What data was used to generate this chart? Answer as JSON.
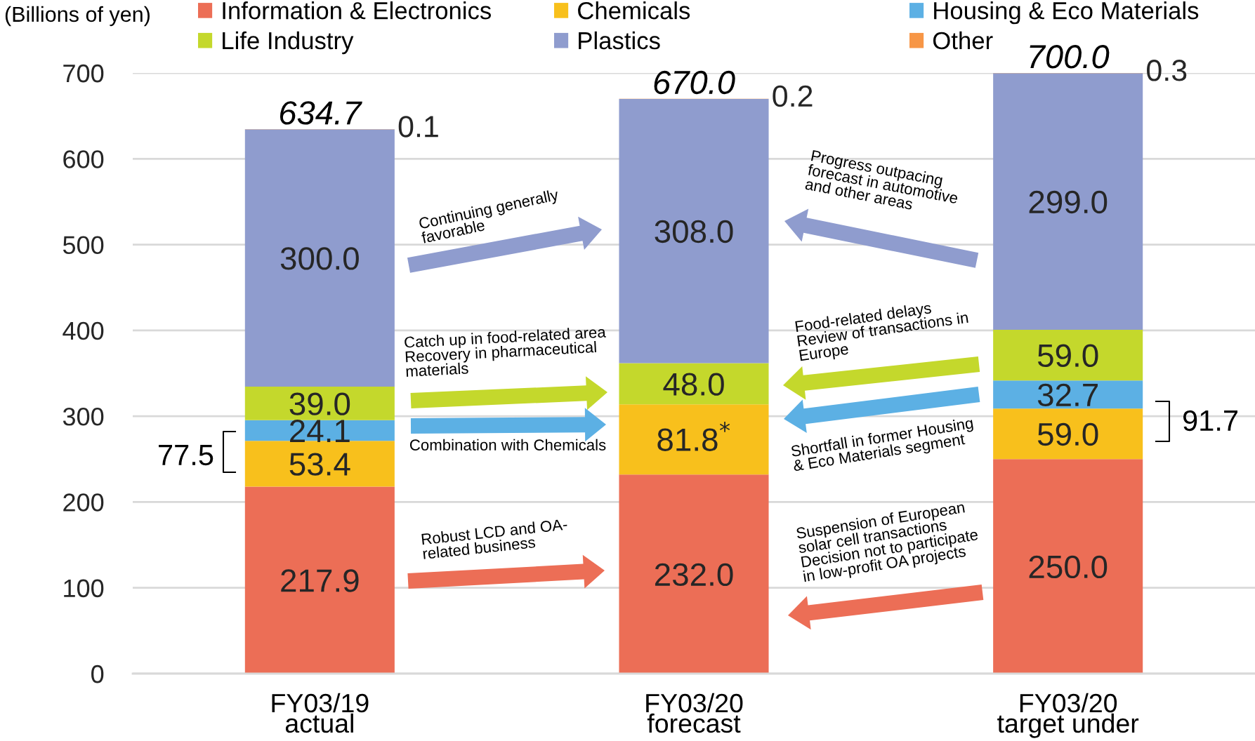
{
  "chart_data": {
    "type": "bar",
    "stacked": true,
    "ylabel": "(Billions of yen)",
    "categories": [
      "FY03/19\nactual",
      "FY03/20\nforecast",
      "FY03/20\ntarget under"
    ],
    "series": [
      {
        "name": "Information & Electronics",
        "color": "#ec6e56",
        "values": [
          217.9,
          232.0,
          250.0
        ],
        "value_labels": [
          "217.9",
          "232.0",
          "250.0"
        ]
      },
      {
        "name": "Chemicals",
        "color": "#f8c01c",
        "values": [
          53.4,
          81.8,
          59.0
        ],
        "value_labels": [
          "53.4",
          "81.8$^{*}$",
          "59.0"
        ]
      },
      {
        "name": "Housing & Eco Materials",
        "color": "#5cb0e4",
        "values": [
          24.1,
          null,
          32.7
        ],
        "value_labels": [
          "24.1",
          null,
          "32.7"
        ]
      },
      {
        "name": "Life Industry",
        "color": "#c4d82c",
        "values": [
          39.0,
          48.0,
          59.0
        ],
        "value_labels": [
          "39.0",
          "48.0",
          "59.0"
        ]
      },
      {
        "name": "Plastics",
        "color": "#8f9cce",
        "values": [
          300.0,
          308.0,
          299.0
        ],
        "value_labels": [
          "300.0",
          "308.0",
          "299.0"
        ]
      },
      {
        "name": "Other",
        "color": "#f79646",
        "values": [
          0.1,
          0.2,
          0.3
        ],
        "value_labels": [
          "0.1",
          "0.2",
          "0.3"
        ]
      }
    ],
    "totals": [
      "634.7",
      "670.0",
      "700.0"
    ],
    "ylim": [
      0,
      700
    ],
    "yticks": [
      0,
      100,
      200,
      300,
      400,
      500,
      600,
      700
    ],
    "grid": "y",
    "legend": "top",
    "annotations": [
      "Continuing generally\nfavorable",
      "Catch up in food-related area\nRecovery in pharmaceutical\nmaterials",
      "Combination with Chemicals",
      "Robust LCD and OA-\nrelated business",
      "Progress outpacing\nforecast in automotive\nand other areas",
      "Food-related delays\nReview of transactions in\nEurope",
      "Shortfall in former Housing\n& Eco Materials segment",
      "Suspension of European\nsolar cell transactions\nDecision not to participate\nin low-profit OA projects",
      "77.5",
      "91.7"
    ]
  }
}
